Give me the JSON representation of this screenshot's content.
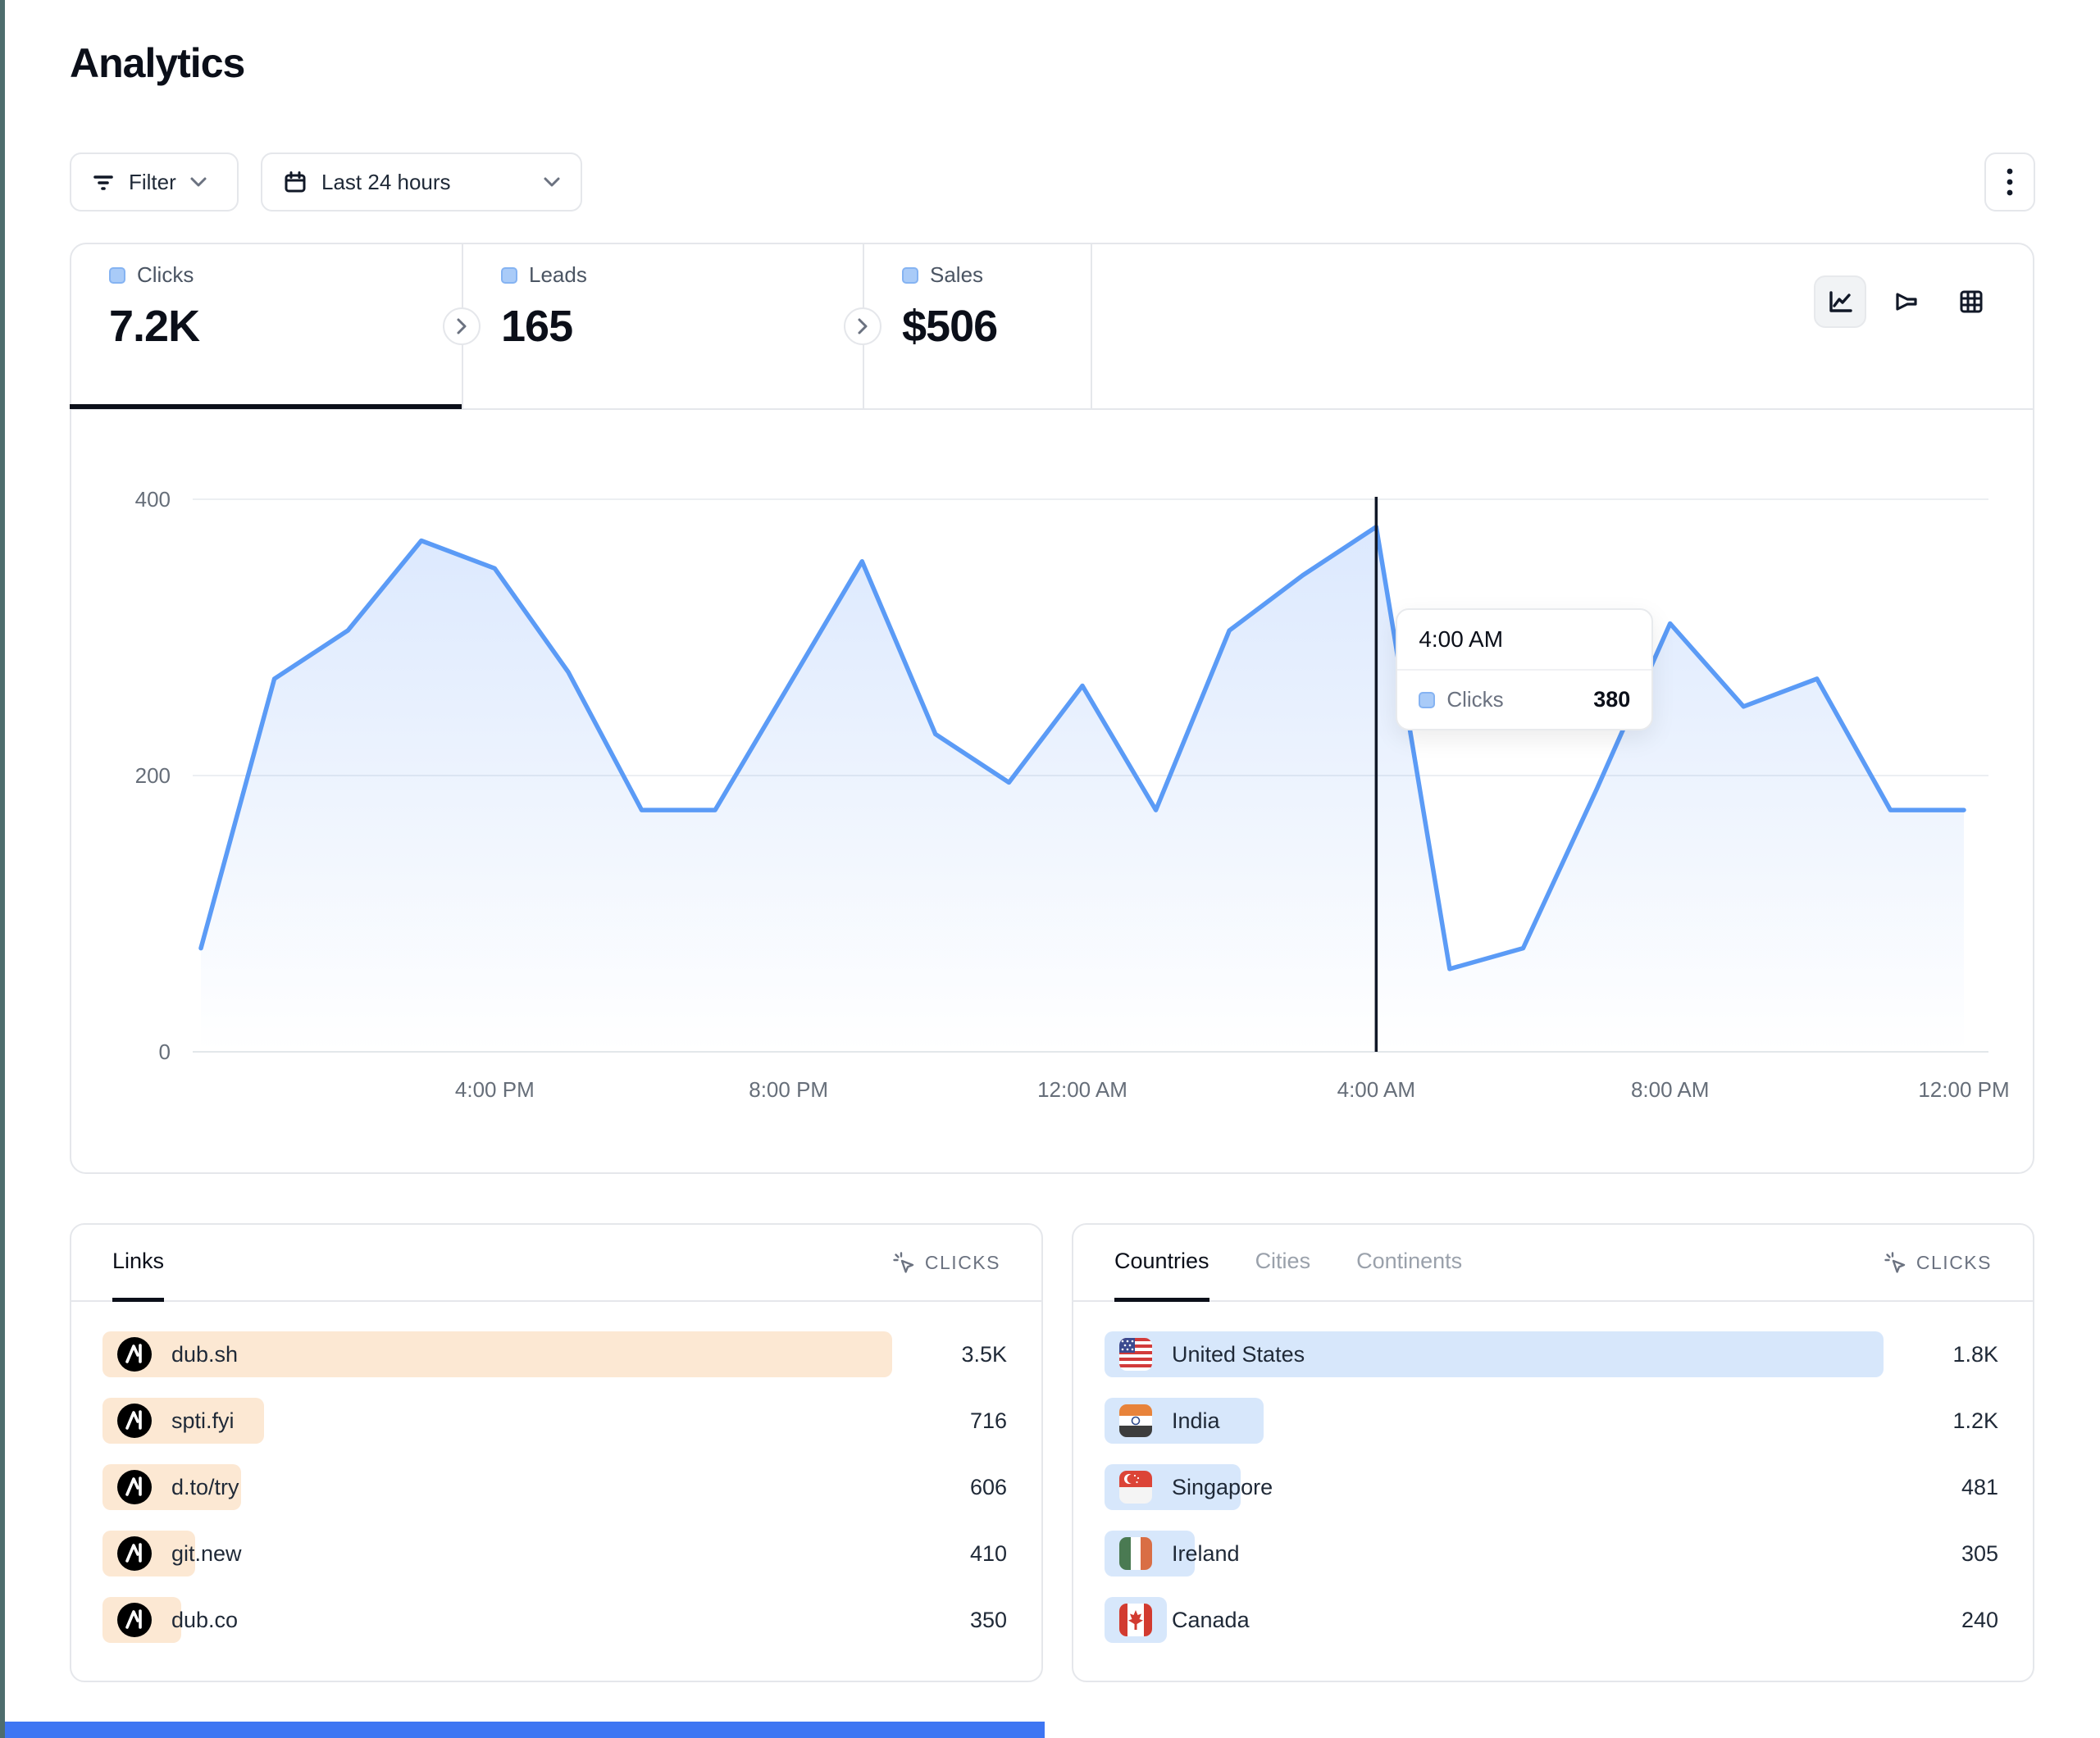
{
  "page": {
    "title": "Analytics"
  },
  "toolbar": {
    "filter_label": "Filter",
    "date_range_label": "Last 24 hours"
  },
  "stats": {
    "tabs": [
      {
        "label": "Clicks",
        "value": "7.2K",
        "active": true
      },
      {
        "label": "Leads",
        "value": "165",
        "active": false
      },
      {
        "label": "Sales",
        "value": "$506",
        "active": false
      }
    ]
  },
  "chart_data": {
    "type": "area",
    "series": [
      {
        "name": "Clicks",
        "values": [
          75,
          270,
          305,
          370,
          350,
          275,
          175,
          175,
          265,
          355,
          230,
          195,
          265,
          175,
          305,
          345,
          380,
          60,
          75,
          190,
          310,
          250,
          270,
          175,
          175
        ]
      }
    ],
    "x": [
      "12:00 PM",
      "1:00 PM",
      "2:00 PM",
      "3:00 PM",
      "4:00 PM",
      "5:00 PM",
      "6:00 PM",
      "7:00 PM",
      "8:00 PM",
      "9:00 PM",
      "10:00 PM",
      "11:00 PM",
      "12:00 AM",
      "1:00 AM",
      "2:00 AM",
      "3:00 AM",
      "4:00 AM",
      "5:00 AM",
      "6:00 AM",
      "7:00 AM",
      "8:00 AM",
      "9:00 AM",
      "10:00 AM",
      "11:00 AM",
      "12:00 PM"
    ],
    "x_tick_indices": [
      4,
      8,
      12,
      16,
      20,
      24
    ],
    "x_tick_labels": [
      "4:00 PM",
      "8:00 PM",
      "12:00 AM",
      "4:00 AM",
      "8:00 AM",
      "12:00 PM"
    ],
    "ylim": [
      0,
      400
    ],
    "yticks": [
      0,
      200,
      400
    ],
    "grid": "horizontal",
    "legend_position": "none",
    "highlight": {
      "x_index": 16,
      "label": "4:00 AM",
      "series": "Clicks",
      "value": 380
    }
  },
  "tooltip": {
    "title": "4:00 AM",
    "row_label": "Clicks",
    "row_value": "380"
  },
  "links_panel": {
    "tab_label": "Links",
    "metric_label": "CLICKS",
    "rows": [
      {
        "label": "dub.sh",
        "value": "3.5K",
        "bar_pct": 100
      },
      {
        "label": "spti.fyi",
        "value": "716",
        "bar_pct": 20.5
      },
      {
        "label": "d.to/try",
        "value": "606",
        "bar_pct": 17.5
      },
      {
        "label": "git.new",
        "value": "410",
        "bar_pct": 11.7
      },
      {
        "label": "dub.co",
        "value": "350",
        "bar_pct": 10
      }
    ]
  },
  "countries_panel": {
    "tabs": [
      {
        "label": "Countries",
        "active": true
      },
      {
        "label": "Cities",
        "active": false
      },
      {
        "label": "Continents",
        "active": false
      }
    ],
    "metric_label": "CLICKS",
    "rows": [
      {
        "label": "United States",
        "value": "1.8K",
        "bar_pct": 100,
        "flag": "us"
      },
      {
        "label": "India",
        "value": "1.2K",
        "bar_pct": 20.4,
        "flag": "in"
      },
      {
        "label": "Singapore",
        "value": "481",
        "bar_pct": 17.5,
        "flag": "sg"
      },
      {
        "label": "Ireland",
        "value": "305",
        "bar_pct": 11.6,
        "flag": "ie"
      },
      {
        "label": "Canada",
        "value": "240",
        "bar_pct": 8,
        "flag": "ca"
      }
    ]
  },
  "colors": {
    "chart_line": "#5b9bf6",
    "chart_fill": "#3b82f6",
    "legend_square": "#a9cbf8",
    "link_bar": "#fce8d3",
    "country_bar": "#d7e7fb",
    "active_underline": "#0b0f19",
    "crosshair": "#111827",
    "left_strip": "#4e6d6d",
    "bottom_bar": "#3e76f3",
    "border": "#e5e7eb",
    "tick_text": "#666e79"
  }
}
